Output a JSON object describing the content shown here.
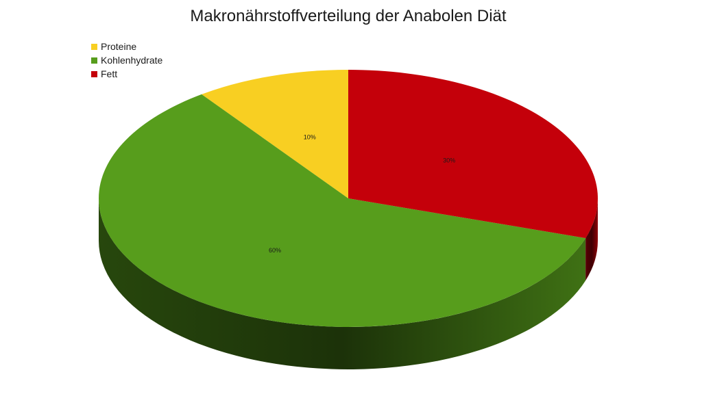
{
  "chart_data": {
    "type": "pie",
    "title": "Makronährstoffverteilung der Anabolen Diät",
    "legend_position": "top-left",
    "categories": [
      "Proteine",
      "Kohlenhydrate",
      "Fett"
    ],
    "values": [
      10,
      60,
      30
    ],
    "data_labels": [
      "10%",
      "60%",
      "30%"
    ],
    "colors": [
      "#f8cf22",
      "#579d1c",
      "#c4000a"
    ],
    "style": "3d"
  },
  "legend": {
    "items": [
      {
        "label": "Proteine",
        "color": "#f8cf22"
      },
      {
        "label": "Kohlenhydrate",
        "color": "#579d1c"
      },
      {
        "label": "Fett",
        "color": "#c4000a"
      }
    ]
  }
}
